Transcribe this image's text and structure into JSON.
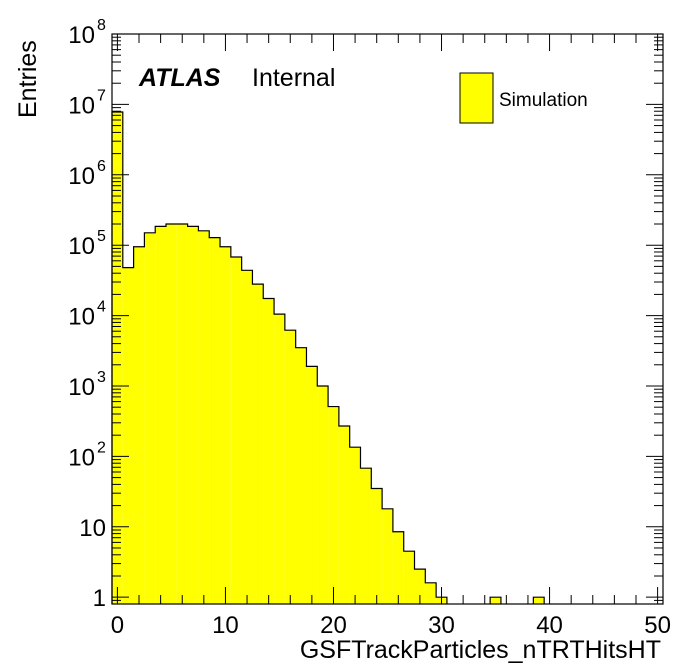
{
  "chart_data": {
    "type": "bar",
    "histogram": true,
    "xlabel": "GSFTrackParticles_nTRTHitsHT",
    "ylabel": "Entries",
    "xlim": [
      -0.5,
      50.5
    ],
    "ylim": [
      0.8,
      100000000
    ],
    "yscale": "log",
    "bin_width": 1,
    "x_ticks": [
      0,
      10,
      20,
      30,
      40,
      50
    ],
    "y_ticks": [
      {
        "value": 1,
        "base": "1",
        "exp": ""
      },
      {
        "value": 10,
        "base": "10",
        "exp": ""
      },
      {
        "value": 100,
        "base": "10",
        "exp": "2"
      },
      {
        "value": 1000,
        "base": "10",
        "exp": "3"
      },
      {
        "value": 10000,
        "base": "10",
        "exp": "4"
      },
      {
        "value": 100000,
        "base": "10",
        "exp": "5"
      },
      {
        "value": 1000000,
        "base": "10",
        "exp": "6"
      },
      {
        "value": 10000000,
        "base": "10",
        "exp": "7"
      },
      {
        "value": 100000000,
        "base": "10",
        "exp": "8"
      }
    ],
    "series": [
      {
        "name": "Simulation",
        "color": "#ffff00",
        "edge_color": "#000000",
        "x": [
          0,
          1,
          2,
          3,
          4,
          5,
          6,
          7,
          8,
          9,
          10,
          11,
          12,
          13,
          14,
          15,
          16,
          17,
          18,
          19,
          20,
          21,
          22,
          23,
          24,
          25,
          26,
          27,
          28,
          29,
          30,
          31,
          32,
          33,
          34,
          35,
          36,
          37,
          38,
          39,
          40,
          41,
          42,
          43,
          44,
          45,
          46,
          47,
          48,
          49,
          50
        ],
        "values": [
          7800000,
          48000,
          95000,
          150000,
          185000,
          200000,
          200000,
          185000,
          160000,
          128000,
          95000,
          68000,
          44000,
          28000,
          17500,
          10500,
          6200,
          3500,
          1900,
          1000,
          510,
          270,
          135,
          68,
          35,
          18,
          8.5,
          4.5,
          2.5,
          1.6,
          1.0,
          0,
          0,
          0,
          0,
          1.0,
          0,
          0,
          0,
          1.0,
          0,
          0,
          0,
          0,
          0,
          0,
          0,
          0,
          0,
          0,
          0
        ]
      }
    ],
    "legend": {
      "position": "top-right",
      "entries": [
        "Simulation"
      ]
    },
    "annotations": [
      {
        "bold": "ATLAS",
        "text": "Internal"
      }
    ]
  }
}
